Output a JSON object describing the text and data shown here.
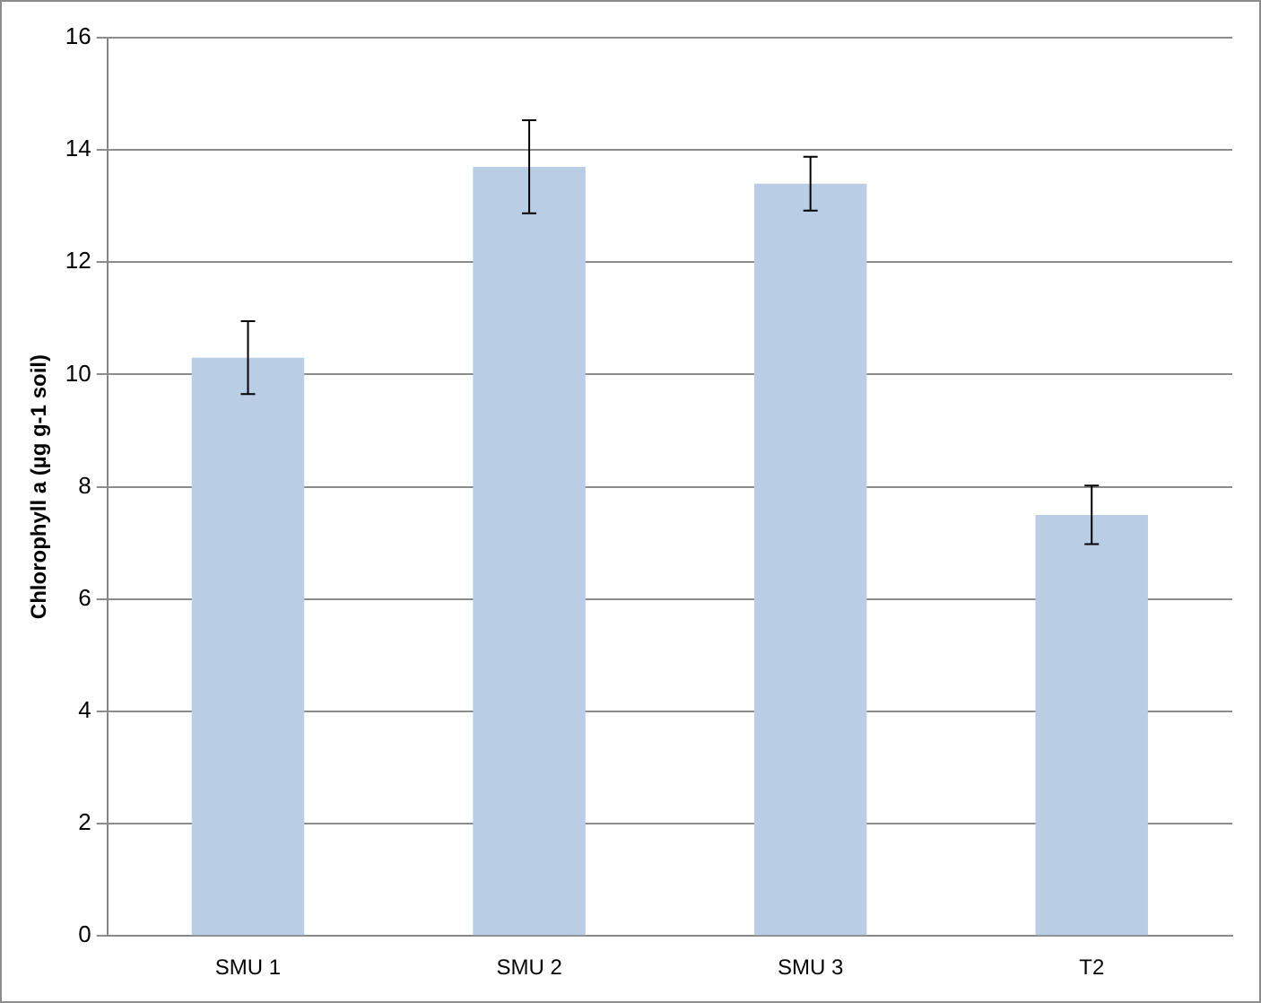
{
  "chart_data": {
    "type": "bar",
    "ylabel": "Chlorophyll a (µg g-1 soil)",
    "categories": [
      "SMU 1",
      "SMU 2",
      "SMU 3",
      "T2"
    ],
    "values": [
      10.3,
      13.7,
      13.4,
      7.5
    ],
    "errors": [
      0.65,
      0.83,
      0.48,
      0.52
    ],
    "color": "#b9cde5",
    "ylim": [
      0,
      16
    ],
    "yticks": [
      0,
      2,
      4,
      6,
      8,
      10,
      12,
      14,
      16
    ],
    "grid": "y"
  }
}
